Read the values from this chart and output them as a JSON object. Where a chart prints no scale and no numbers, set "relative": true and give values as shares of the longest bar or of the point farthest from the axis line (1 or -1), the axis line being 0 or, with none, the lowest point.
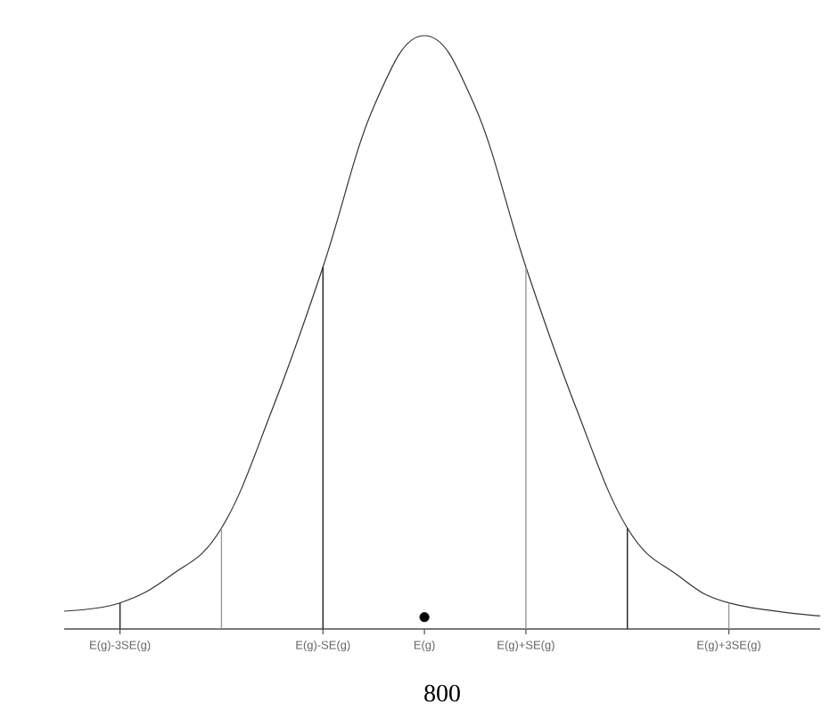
{
  "chart_data": {
    "type": "line",
    "relative": true,
    "xlabel": "800",
    "xlim": [
      -3.55,
      3.9
    ],
    "xticks": [
      {
        "value": -3,
        "label": "E(g)-3SE(g)"
      },
      {
        "value": -1,
        "label": "E(g)-SE(g)"
      },
      {
        "value": 0,
        "label": "E(g)"
      },
      {
        "value": 1,
        "label": "E(g)+SE(g)"
      },
      {
        "value": 3,
        "label": "E(g)+3SE(g)"
      }
    ],
    "series": [
      {
        "color": "#333333",
        "x": [
          -3.55,
          -3,
          -2.5,
          -2,
          -1.5,
          -1,
          -0.5,
          0,
          0.5,
          1,
          1.5,
          2,
          2.5,
          3,
          3.9
        ],
        "values": [
          0.03,
          0.044,
          0.09,
          0.17,
          0.37,
          0.61,
          0.88,
          1,
          0.88,
          0.61,
          0.37,
          0.17,
          0.09,
          0.044,
          0.022
        ]
      },
      {
        "type": "scatter",
        "marker": "circle",
        "color": "#000000",
        "x": [
          0
        ],
        "values": [
          0.02
        ]
      },
      {
        "type": "bar",
        "x": [
          -3,
          -2,
          -1,
          1,
          2,
          3
        ],
        "values": [
          0.044,
          0.17,
          0.61,
          0.61,
          0.17,
          0.044
        ],
        "colors": [
          "#222222",
          "#999999",
          "#222222",
          "#999999",
          "#222222",
          "#999999"
        ]
      }
    ]
  }
}
